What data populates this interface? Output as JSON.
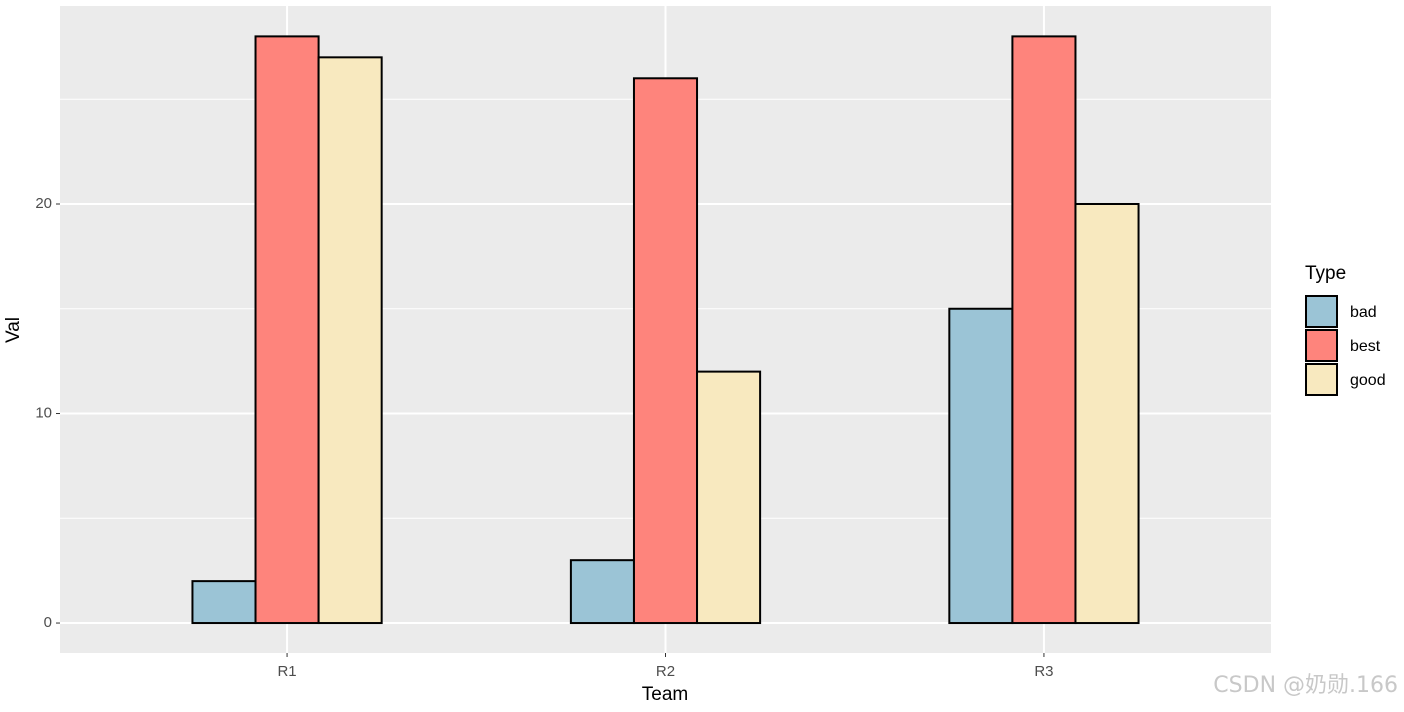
{
  "chart_data": {
    "type": "bar",
    "x_label": "Team",
    "y_label": "Val",
    "categories": [
      "R1",
      "R2",
      "R3"
    ],
    "series": [
      {
        "name": "bad",
        "color": "#9bc4d6",
        "values": [
          2,
          3,
          15
        ]
      },
      {
        "name": "best",
        "color": "#fe847c",
        "values": [
          28,
          26,
          28
        ]
      },
      {
        "name": "good",
        "color": "#f8e9bf",
        "values": [
          27,
          12,
          20
        ]
      }
    ],
    "legend_title": "Type",
    "legend": "right",
    "ylim": [
      -1.43,
      29.45
    ],
    "yticks": [
      0,
      10,
      20
    ],
    "minor_yticks": [
      5,
      15,
      25
    ],
    "grid": true,
    "watermark": "CSDN @奶勋.166"
  }
}
